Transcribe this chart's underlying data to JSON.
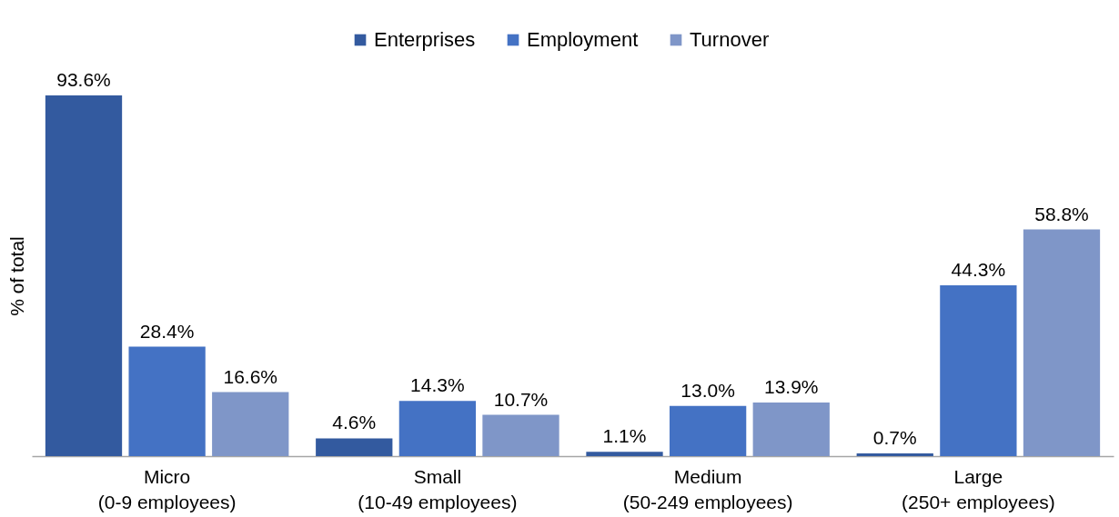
{
  "chart_data": {
    "type": "bar",
    "ylabel": "% of total",
    "categories": [
      "Micro\n(0-9 employees)",
      "Small\n(10-49 employees)",
      "Medium\n(50-249 employees)",
      "Large\n(250+ employees)"
    ],
    "series": [
      {
        "name": "Enterprises",
        "color": "#335a9f",
        "values": [
          93.6,
          4.6,
          1.1,
          0.7
        ],
        "value_labels": [
          "93.6%",
          "4.6%",
          "1.1%",
          "0.7%"
        ]
      },
      {
        "name": "Employment",
        "color": "#4472c4",
        "values": [
          28.4,
          14.3,
          13.0,
          44.3
        ],
        "value_labels": [
          "28.4%",
          "14.3%",
          "13.0%",
          "44.3%"
        ]
      },
      {
        "name": "Turnover",
        "color": "#7f96c8",
        "values": [
          16.6,
          10.7,
          13.9,
          58.8
        ],
        "value_labels": [
          "16.6%",
          "10.7%",
          "13.9%",
          "58.8%"
        ]
      }
    ],
    "legend": "top",
    "grid": false
  }
}
